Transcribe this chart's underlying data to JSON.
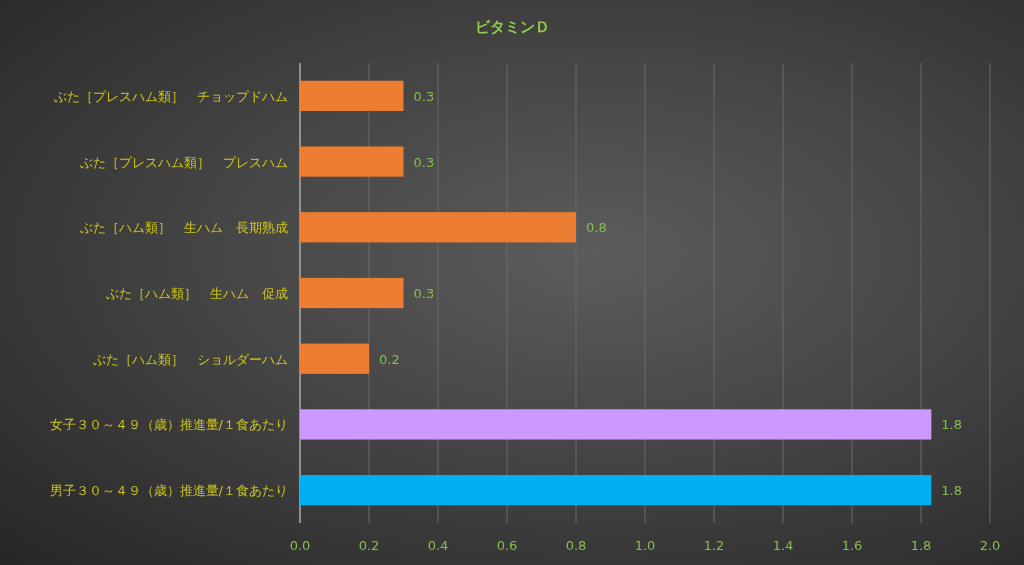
{
  "chart_data": {
    "type": "bar",
    "orientation": "horizontal",
    "title": "ビタミンＤ",
    "categories": [
      "ぶた［プレスハム類］　チョップドハム",
      "ぶた［プレスハム類］　プレスハム",
      "ぶた［ハム類］　生ハム　長期熟成",
      "ぶた［ハム類］　生ハム　促成",
      "ぶた［ハム類］　ショルダーハム",
      "女子３０～４９（歳）推進量/１食あたり",
      "男子３０～４９（歳）推進量/１食あたり"
    ],
    "values": [
      0.3,
      0.3,
      0.8,
      0.3,
      0.2,
      1.83,
      1.83
    ],
    "colors": [
      "#ed7d31",
      "#ed7d31",
      "#ed7d31",
      "#ed7d31",
      "#ed7d31",
      "#cc99ff",
      "#00b0f0"
    ],
    "value_labels": [
      "0.3",
      "0.3",
      "0.8",
      "0.3",
      "0.2",
      "1.8",
      "1.8"
    ],
    "xlim": [
      0,
      2
    ],
    "xticks": [
      {
        "value": 0,
        "label": "0.0"
      },
      0.2,
      0.4,
      0.6,
      0.8,
      {
        "value": 1,
        "label": "1.0"
      },
      1.2,
      1.4,
      1.6,
      1.8,
      {
        "value": 2,
        "label": "2.0"
      }
    ],
    "grid": "x"
  }
}
